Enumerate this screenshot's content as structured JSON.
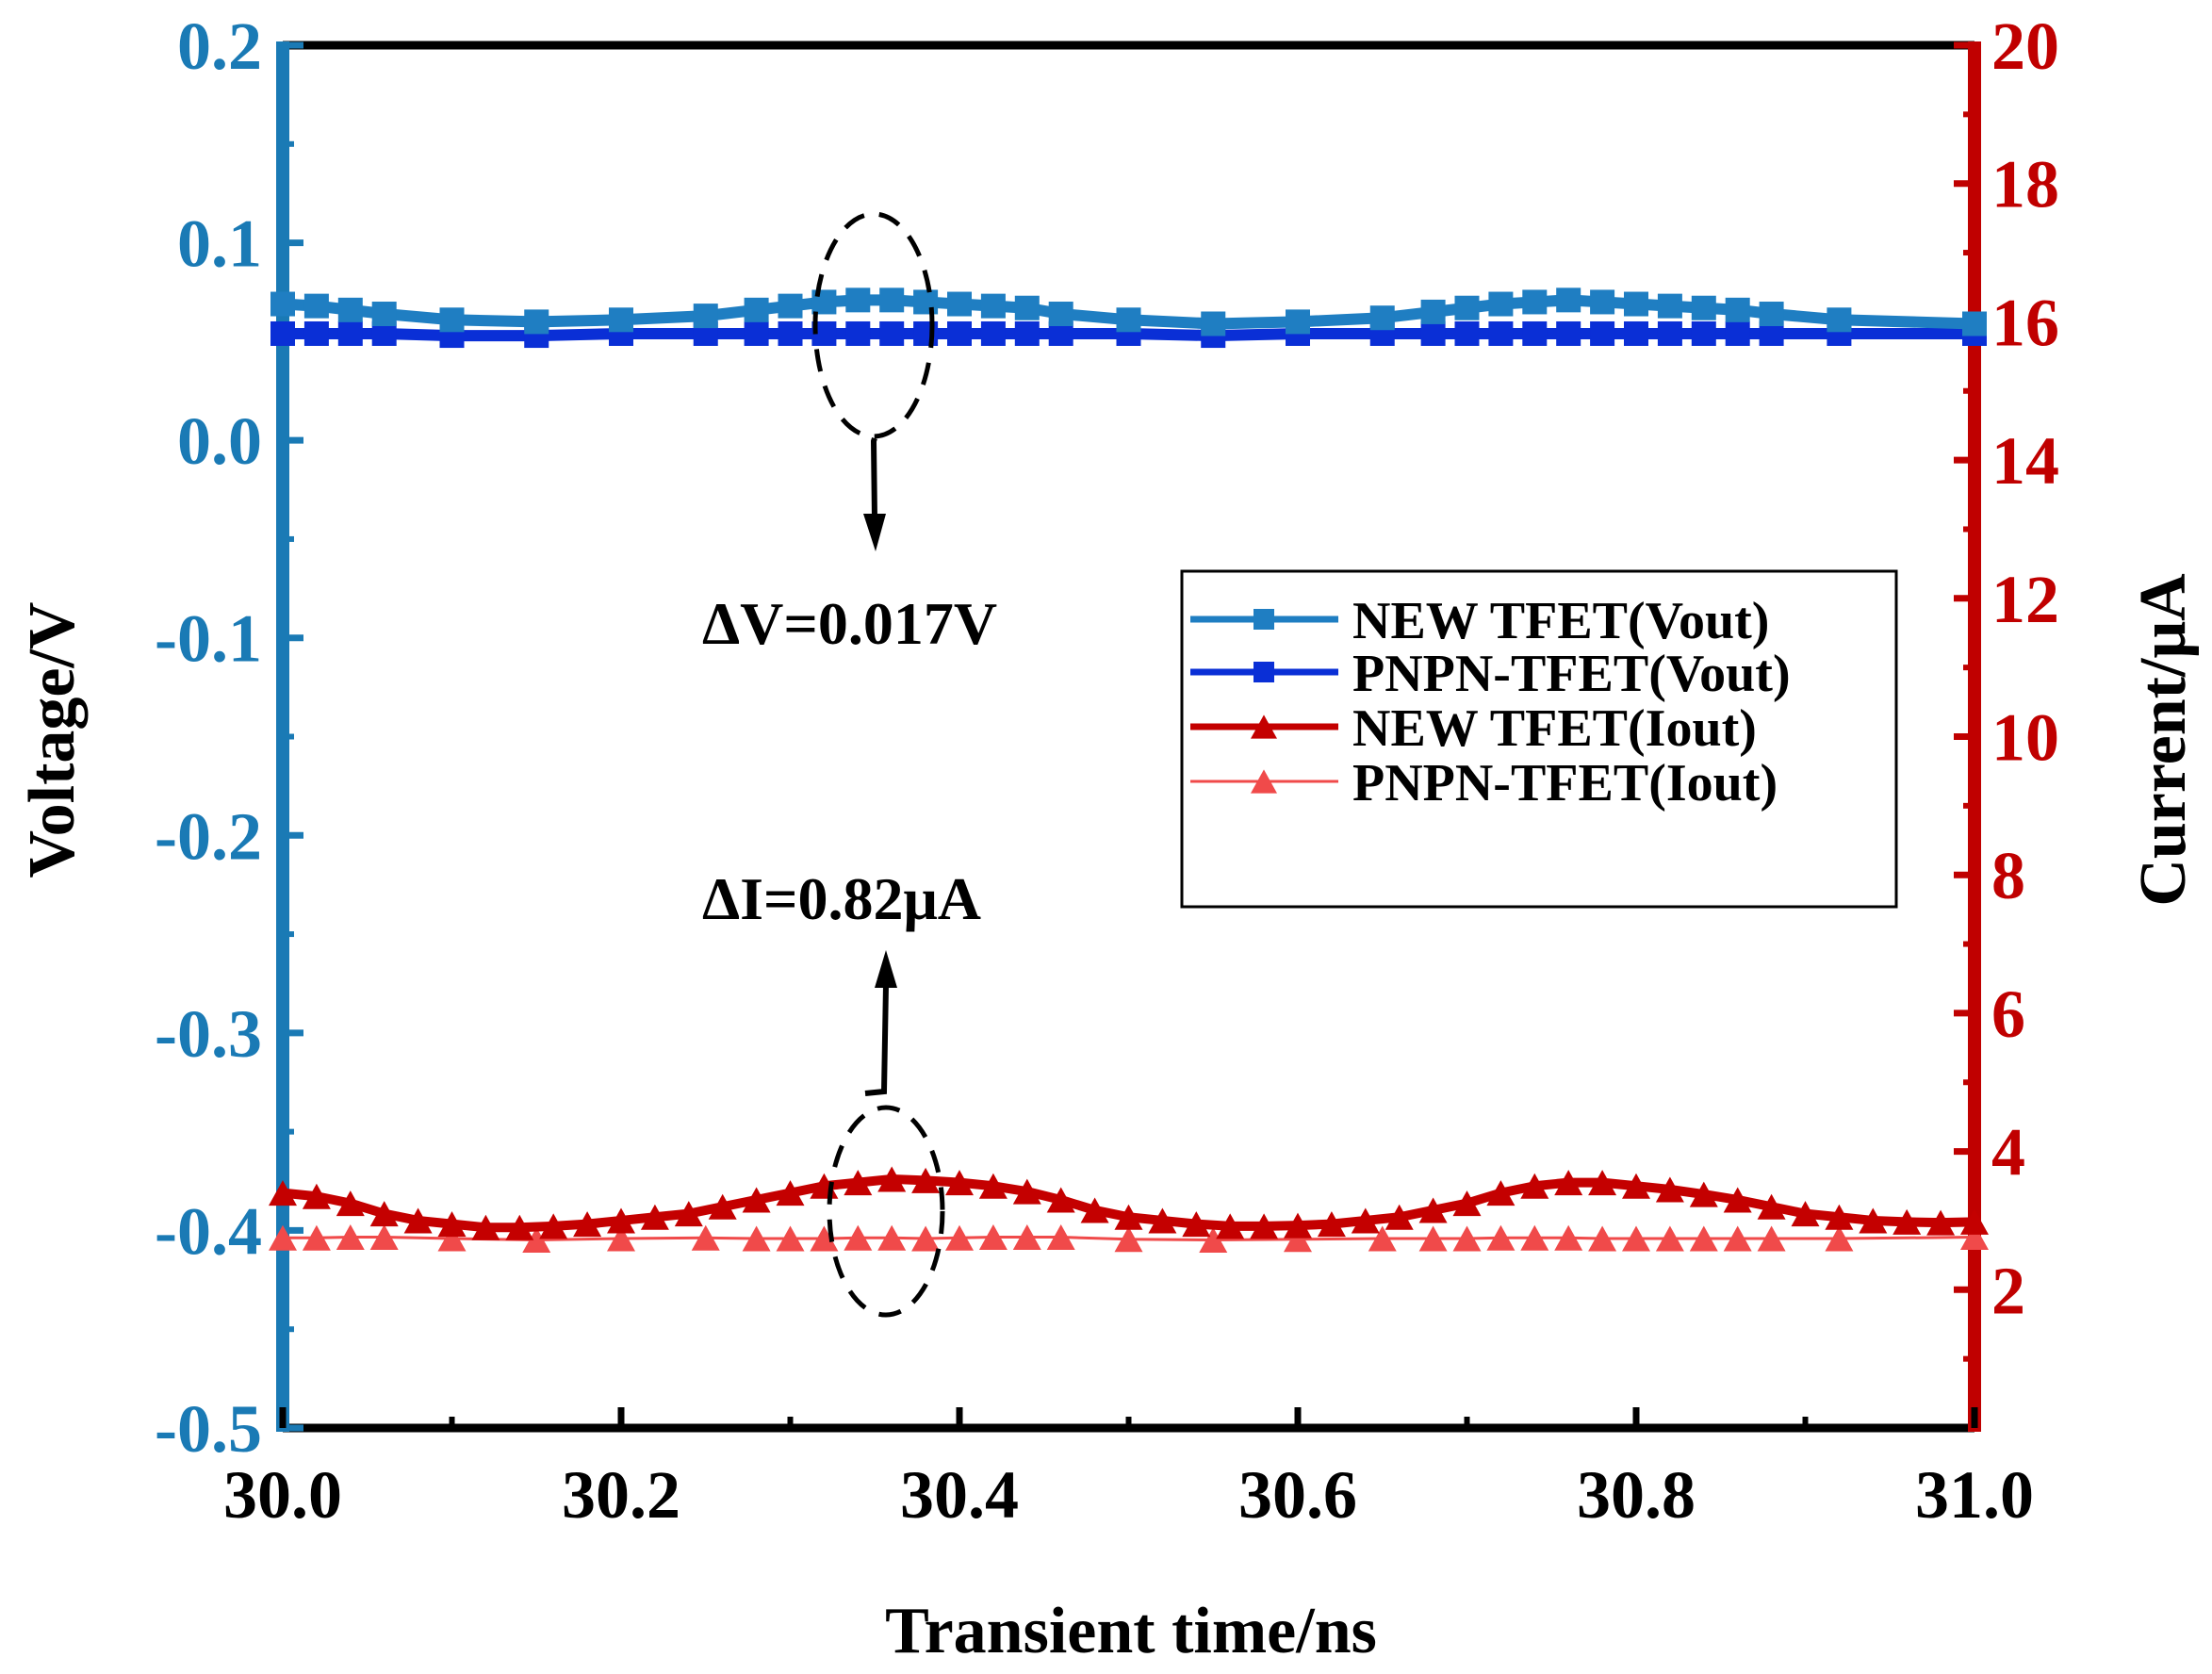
{
  "chart_data": {
    "type": "line",
    "xlabel": "Transient time/ns",
    "ylabel_left": "Voltage/V",
    "ylabel_right": "Current/μA",
    "xlim": [
      30.0,
      31.0
    ],
    "ylim_left": [
      -0.5,
      0.2
    ],
    "ylim_right": [
      0,
      20
    ],
    "x_ticks": [
      "30.0",
      "30.2",
      "30.4",
      "30.6",
      "30.8",
      "31.0"
    ],
    "x_tick_values": [
      30.0,
      30.2,
      30.4,
      30.6,
      30.8,
      31.0
    ],
    "left_ticks": [
      "0.2",
      "0.1",
      "0.0",
      "-0.1",
      "-0.2",
      "-0.3",
      "-0.4",
      "-0.5"
    ],
    "left_tick_values": [
      0.2,
      0.1,
      0.0,
      -0.1,
      -0.2,
      -0.3,
      -0.4,
      -0.5
    ],
    "right_ticks": [
      "20",
      "18",
      "16",
      "14",
      "12",
      "10",
      "8",
      "6",
      "4",
      "2"
    ],
    "right_tick_values": [
      20,
      18,
      16,
      14,
      12,
      10,
      8,
      6,
      4,
      2
    ],
    "annotations": {
      "delta_v": "ΔV=0.017V",
      "delta_i": "ΔI=0.82μA"
    },
    "colors": {
      "left_axis": "#1a7ab5",
      "right_axis": "#c00000",
      "new_vout": "#1f7ec2",
      "pnpn_vout": "#0a2fd6",
      "new_iout": "#c40000",
      "pnpn_iout": "#f04a4a"
    },
    "series": [
      {
        "name": "NEW TFET(Vout)",
        "axis": "left",
        "marker": "square",
        "x": [
          30.0,
          30.02,
          30.04,
          30.06,
          30.1,
          30.15,
          30.2,
          30.25,
          30.28,
          30.3,
          30.32,
          30.34,
          30.36,
          30.38,
          30.4,
          30.42,
          30.44,
          30.46,
          30.5,
          30.55,
          30.6,
          30.65,
          30.68,
          30.7,
          30.72,
          30.74,
          30.76,
          30.78,
          30.8,
          30.82,
          30.84,
          30.86,
          30.88,
          30.92,
          31.0
        ],
        "y": [
          0.069,
          0.068,
          0.066,
          0.064,
          0.061,
          0.06,
          0.061,
          0.063,
          0.066,
          0.068,
          0.07,
          0.071,
          0.071,
          0.07,
          0.069,
          0.068,
          0.067,
          0.064,
          0.061,
          0.059,
          0.06,
          0.062,
          0.065,
          0.067,
          0.069,
          0.07,
          0.071,
          0.07,
          0.069,
          0.068,
          0.067,
          0.066,
          0.064,
          0.061,
          0.059
        ]
      },
      {
        "name": "PNPN-TFET(Vout)",
        "axis": "left",
        "marker": "square",
        "x": [
          30.0,
          30.02,
          30.04,
          30.06,
          30.1,
          30.15,
          30.2,
          30.25,
          30.28,
          30.3,
          30.32,
          30.34,
          30.36,
          30.38,
          30.4,
          30.42,
          30.44,
          30.46,
          30.5,
          30.55,
          30.6,
          30.65,
          30.68,
          30.7,
          30.72,
          30.74,
          30.76,
          30.78,
          30.8,
          30.82,
          30.84,
          30.86,
          30.88,
          30.92,
          31.0
        ],
        "y": [
          0.054,
          0.054,
          0.054,
          0.054,
          0.053,
          0.053,
          0.054,
          0.054,
          0.054,
          0.054,
          0.054,
          0.054,
          0.054,
          0.054,
          0.054,
          0.054,
          0.054,
          0.054,
          0.054,
          0.053,
          0.054,
          0.054,
          0.054,
          0.054,
          0.054,
          0.054,
          0.054,
          0.054,
          0.054,
          0.054,
          0.054,
          0.054,
          0.054,
          0.054,
          0.054
        ]
      },
      {
        "name": "NEW TFET(Iout)",
        "axis": "right",
        "marker": "triangle",
        "x": [
          30.0,
          30.02,
          30.04,
          30.06,
          30.08,
          30.1,
          30.12,
          30.14,
          30.16,
          30.18,
          30.2,
          30.22,
          30.24,
          30.26,
          30.28,
          30.3,
          30.32,
          30.34,
          30.36,
          30.38,
          30.4,
          30.42,
          30.44,
          30.46,
          30.48,
          30.5,
          30.52,
          30.54,
          30.56,
          30.58,
          30.6,
          30.62,
          30.64,
          30.66,
          30.68,
          30.7,
          30.72,
          30.74,
          30.76,
          30.78,
          30.8,
          30.82,
          30.84,
          30.86,
          30.88,
          30.9,
          30.92,
          30.94,
          30.96,
          30.98,
          31.0
        ],
        "y": [
          3.4,
          3.35,
          3.25,
          3.1,
          3.0,
          2.95,
          2.9,
          2.9,
          2.92,
          2.95,
          3.0,
          3.05,
          3.1,
          3.2,
          3.3,
          3.4,
          3.5,
          3.55,
          3.6,
          3.58,
          3.55,
          3.5,
          3.42,
          3.3,
          3.15,
          3.05,
          3.0,
          2.95,
          2.92,
          2.92,
          2.93,
          2.95,
          3.0,
          3.05,
          3.15,
          3.25,
          3.4,
          3.5,
          3.55,
          3.55,
          3.5,
          3.45,
          3.38,
          3.3,
          3.2,
          3.1,
          3.05,
          3.0,
          2.98,
          2.97,
          2.98
        ]
      },
      {
        "name": "PNPN-TFET(Iout)",
        "axis": "right",
        "marker": "triangle",
        "x": [
          30.0,
          30.02,
          30.04,
          30.06,
          30.1,
          30.15,
          30.2,
          30.25,
          30.28,
          30.3,
          30.32,
          30.34,
          30.36,
          30.38,
          30.4,
          30.42,
          30.44,
          30.46,
          30.5,
          30.55,
          30.6,
          30.65,
          30.68,
          30.7,
          30.72,
          30.74,
          30.76,
          30.78,
          30.8,
          30.82,
          30.84,
          30.86,
          30.88,
          30.92,
          31.0
        ],
        "y": [
          2.75,
          2.75,
          2.76,
          2.76,
          2.74,
          2.72,
          2.74,
          2.75,
          2.74,
          2.74,
          2.74,
          2.75,
          2.75,
          2.74,
          2.75,
          2.76,
          2.76,
          2.76,
          2.73,
          2.72,
          2.73,
          2.74,
          2.74,
          2.74,
          2.75,
          2.75,
          2.75,
          2.74,
          2.74,
          2.74,
          2.74,
          2.74,
          2.74,
          2.74,
          2.76
        ]
      }
    ]
  }
}
